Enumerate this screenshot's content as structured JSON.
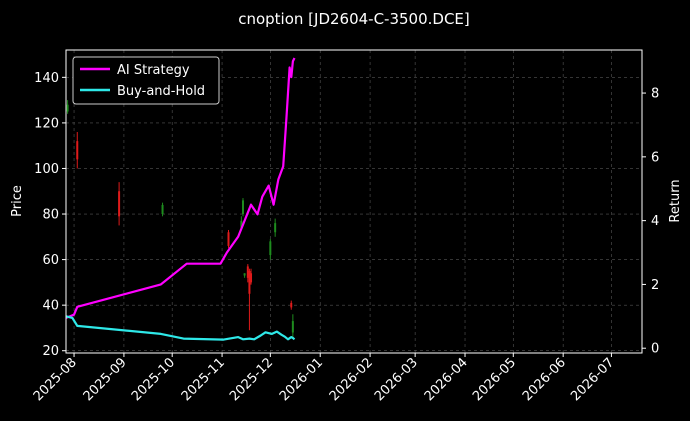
{
  "chart_data": {
    "type": "line",
    "title": "cnoption [JD2604-C-3500.DCE]",
    "xlabel": "",
    "ylabel_left": "Price",
    "ylabel_right": "Return",
    "x_ticks": [
      "2025-08",
      "2025-09",
      "2025-10",
      "2025-11",
      "2025-12",
      "2026-01",
      "2026-02",
      "2026-03",
      "2026-04",
      "2026-05",
      "2026-06",
      "2026-07"
    ],
    "y_left_ticks": [
      20,
      40,
      60,
      80,
      100,
      120,
      140
    ],
    "y_right_ticks": [
      0,
      2,
      4,
      6,
      8
    ],
    "xlim": [
      "2025-07-27",
      "2026-07-20"
    ],
    "ylim_left": [
      19,
      152
    ],
    "ylim_right": [
      -0.15,
      9.35
    ],
    "grid": true,
    "legend_position": "top-left",
    "candles": [
      {
        "date": "2025-07-28",
        "open": 128,
        "close": 125,
        "high": 130,
        "low": 124,
        "color": "#1e8c1e"
      },
      {
        "date": "2025-08-03",
        "open": 112,
        "close": 104,
        "high": 116,
        "low": 100,
        "color": "#e01b1b"
      },
      {
        "date": "2025-08-29",
        "open": 90,
        "close": 79,
        "high": 94,
        "low": 75,
        "color": "#e01b1b"
      },
      {
        "date": "2025-09-25",
        "open": 80,
        "close": 84,
        "high": 85,
        "low": 79,
        "color": "#1e8c1e"
      },
      {
        "date": "2025-11-05",
        "open": 72,
        "close": 66,
        "high": 73,
        "low": 65,
        "color": "#e01b1b"
      },
      {
        "date": "2025-11-13",
        "open": 74,
        "close": 77,
        "high": 79,
        "low": 73,
        "color": "#1e8c1e"
      },
      {
        "date": "2025-11-14",
        "open": 80,
        "close": 86,
        "high": 87,
        "low": 79,
        "color": "#1e8c1e"
      },
      {
        "date": "2025-11-15",
        "open": 54,
        "close": 53,
        "high": 54,
        "low": 52,
        "color": "#1e8c1e"
      },
      {
        "date": "2025-11-17",
        "open": 57,
        "close": 52,
        "high": 58,
        "low": 50,
        "color": "#e01b1b"
      },
      {
        "date": "2025-11-18",
        "open": 55,
        "close": 45,
        "high": 56,
        "low": 29,
        "color": "#e01b1b"
      },
      {
        "date": "2025-11-19",
        "open": 54,
        "close": 50,
        "high": 56,
        "low": 49,
        "color": "#e01b1b"
      },
      {
        "date": "2025-12-01",
        "open": 62,
        "close": 68,
        "high": 69,
        "low": 60,
        "color": "#1e8c1e"
      },
      {
        "date": "2025-12-04",
        "open": 72,
        "close": 76,
        "high": 78,
        "low": 70,
        "color": "#1e8c1e"
      },
      {
        "date": "2025-12-14",
        "open": 41,
        "close": 39,
        "high": 42,
        "low": 38,
        "color": "#e01b1b"
      },
      {
        "date": "2025-12-15",
        "open": 28,
        "close": 33,
        "high": 36,
        "low": 26,
        "color": "#1e8c1e"
      }
    ],
    "series": [
      {
        "name": "AI Strategy",
        "axis": "right",
        "color": "#ff00ff",
        "x": [
          "2025-07-27",
          "2025-08-01",
          "2025-08-03",
          "2025-09-24",
          "2025-10-10",
          "2025-10-31",
          "2025-11-04",
          "2025-11-11",
          "2025-11-19",
          "2025-11-23",
          "2025-11-26",
          "2025-11-30",
          "2025-12-03",
          "2025-12-06",
          "2025-12-09",
          "2025-12-11",
          "2025-12-13",
          "2025-12-14",
          "2025-12-15",
          "2025-12-16"
        ],
        "values": [
          0.95,
          1.05,
          1.3,
          2.0,
          2.65,
          2.65,
          3.0,
          3.5,
          4.5,
          4.2,
          4.75,
          5.1,
          4.5,
          5.3,
          5.7,
          7.2,
          8.8,
          8.5,
          9.0,
          9.1
        ]
      },
      {
        "name": "Buy-and-Hold",
        "axis": "right",
        "color": "#2ee8e8",
        "x": [
          "2025-07-27",
          "2025-07-31",
          "2025-08-03",
          "2025-09-24",
          "2025-10-08",
          "2025-11-02",
          "2025-11-11",
          "2025-11-14",
          "2025-11-18",
          "2025-11-21",
          "2025-11-25",
          "2025-11-28",
          "2025-12-02",
          "2025-12-05",
          "2025-12-08",
          "2025-12-10",
          "2025-12-12",
          "2025-12-14",
          "2025-12-15",
          "2025-12-16"
        ],
        "values": [
          1.0,
          0.95,
          0.7,
          0.45,
          0.3,
          0.27,
          0.35,
          0.28,
          0.3,
          0.28,
          0.4,
          0.5,
          0.45,
          0.52,
          0.42,
          0.36,
          0.28,
          0.35,
          0.32,
          0.28
        ]
      }
    ]
  }
}
